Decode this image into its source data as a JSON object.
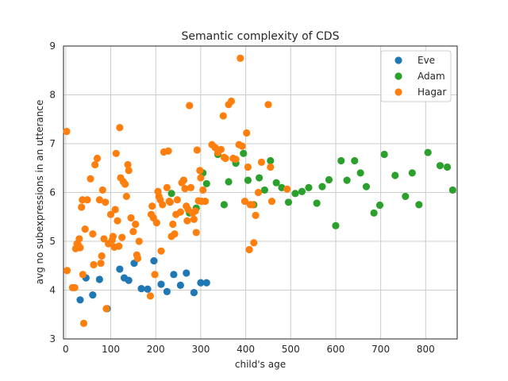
{
  "chart_data": {
    "type": "scatter",
    "title": "Semantic complexity of CDS",
    "xlabel": "child's age",
    "ylabel": "avg no subexpressions in an utterance",
    "xlim": [
      -5,
      870
    ],
    "ylim": [
      3,
      9
    ],
    "xticks": [
      0,
      100,
      200,
      300,
      400,
      500,
      600,
      700,
      800
    ],
    "yticks": [
      3,
      4,
      5,
      6,
      7,
      8,
      9
    ],
    "grid": true,
    "legend": "top-right",
    "series": [
      {
        "name": "Eve",
        "color": "#1f77b4",
        "points": [
          [
            32,
            3.8
          ],
          [
            45,
            4.25
          ],
          [
            60,
            3.9
          ],
          [
            75,
            4.22
          ],
          [
            92,
            3.62
          ],
          [
            120,
            4.43
          ],
          [
            130,
            4.25
          ],
          [
            140,
            4.2
          ],
          [
            152,
            4.55
          ],
          [
            168,
            4.03
          ],
          [
            182,
            4.02
          ],
          [
            196,
            4.6
          ],
          [
            212,
            4.12
          ],
          [
            225,
            3.97
          ],
          [
            240,
            4.32
          ],
          [
            255,
            4.1
          ],
          [
            268,
            4.35
          ],
          [
            285,
            3.95
          ],
          [
            300,
            4.15
          ],
          [
            313,
            4.15
          ]
        ]
      },
      {
        "name": "Adam",
        "color": "#2ca02c",
        "points": [
          [
            235,
            5.98
          ],
          [
            262,
            6.25
          ],
          [
            275,
            5.58
          ],
          [
            290,
            5.68
          ],
          [
            305,
            6.4
          ],
          [
            313,
            6.18
          ],
          [
            338,
            6.78
          ],
          [
            352,
            5.75
          ],
          [
            362,
            6.22
          ],
          [
            378,
            6.6
          ],
          [
            395,
            6.8
          ],
          [
            405,
            6.25
          ],
          [
            418,
            5.75
          ],
          [
            430,
            6.3
          ],
          [
            442,
            6.05
          ],
          [
            455,
            6.65
          ],
          [
            468,
            6.2
          ],
          [
            480,
            6.1
          ],
          [
            495,
            5.8
          ],
          [
            510,
            5.98
          ],
          [
            525,
            6.02
          ],
          [
            540,
            6.1
          ],
          [
            558,
            5.78
          ],
          [
            570,
            6.12
          ],
          [
            585,
            6.26
          ],
          [
            600,
            5.32
          ],
          [
            612,
            6.65
          ],
          [
            625,
            6.25
          ],
          [
            642,
            6.65
          ],
          [
            655,
            6.4
          ],
          [
            668,
            6.12
          ],
          [
            685,
            5.58
          ],
          [
            698,
            5.74
          ],
          [
            708,
            6.78
          ],
          [
            732,
            6.35
          ],
          [
            755,
            5.92
          ],
          [
            770,
            6.4
          ],
          [
            785,
            5.75
          ],
          [
            805,
            6.82
          ],
          [
            832,
            6.55
          ],
          [
            848,
            6.52
          ],
          [
            860,
            6.05
          ]
        ]
      },
      {
        "name": "Hagar",
        "color": "#ff7f0e",
        "points": [
          [
            2,
            7.25
          ],
          [
            3,
            4.4
          ],
          [
            15,
            4.05
          ],
          [
            20,
            4.05
          ],
          [
            22,
            4.85
          ],
          [
            25,
            4.95
          ],
          [
            28,
            4.92
          ],
          [
            30,
            5.05
          ],
          [
            32,
            4.87
          ],
          [
            35,
            5.7
          ],
          [
            37,
            5.85
          ],
          [
            38,
            4.32
          ],
          [
            40,
            3.32
          ],
          [
            43,
            5.25
          ],
          [
            48,
            5.85
          ],
          [
            55,
            6.28
          ],
          [
            60,
            5.15
          ],
          [
            62,
            4.52
          ],
          [
            65,
            6.57
          ],
          [
            70,
            6.7
          ],
          [
            75,
            5.85
          ],
          [
            78,
            4.55
          ],
          [
            80,
            4.7
          ],
          [
            82,
            6.05
          ],
          [
            85,
            5.05
          ],
          [
            88,
            5.8
          ],
          [
            90,
            3.62
          ],
          [
            95,
            4.95
          ],
          [
            100,
            5.55
          ],
          [
            103,
            5.02
          ],
          [
            105,
            5.1
          ],
          [
            108,
            4.88
          ],
          [
            110,
            5.65
          ],
          [
            112,
            6.8
          ],
          [
            115,
            5.42
          ],
          [
            118,
            4.9
          ],
          [
            120,
            7.33
          ],
          [
            122,
            6.3
          ],
          [
            125,
            5.08
          ],
          [
            128,
            6.22
          ],
          [
            132,
            6.17
          ],
          [
            135,
            5.92
          ],
          [
            138,
            6.57
          ],
          [
            140,
            6.45
          ],
          [
            145,
            5.48
          ],
          [
            150,
            5.2
          ],
          [
            155,
            5.35
          ],
          [
            158,
            4.72
          ],
          [
            160,
            4.65
          ],
          [
            163,
            5.0
          ],
          [
            188,
            3.88
          ],
          [
            190,
            5.55
          ],
          [
            192,
            5.72
          ],
          [
            195,
            5.48
          ],
          [
            198,
            4.32
          ],
          [
            202,
            5.38
          ],
          [
            205,
            6.02
          ],
          [
            207,
            5.92
          ],
          [
            210,
            5.85
          ],
          [
            212,
            4.8
          ],
          [
            215,
            5.75
          ],
          [
            218,
            6.83
          ],
          [
            225,
            6.1
          ],
          [
            228,
            6.85
          ],
          [
            230,
            5.82
          ],
          [
            232,
            5.8
          ],
          [
            235,
            5.1
          ],
          [
            238,
            5.35
          ],
          [
            242,
            5.15
          ],
          [
            245,
            5.55
          ],
          [
            248,
            5.85
          ],
          [
            255,
            5.6
          ],
          [
            258,
            6.2
          ],
          [
            262,
            6.25
          ],
          [
            265,
            6.08
          ],
          [
            268,
            5.72
          ],
          [
            270,
            5.42
          ],
          [
            272,
            5.65
          ],
          [
            275,
            7.78
          ],
          [
            278,
            6.1
          ],
          [
            282,
            5.58
          ],
          [
            285,
            5.45
          ],
          [
            288,
            5.62
          ],
          [
            290,
            5.18
          ],
          [
            292,
            6.87
          ],
          [
            295,
            5.83
          ],
          [
            298,
            6.45
          ],
          [
            300,
            6.3
          ],
          [
            302,
            5.82
          ],
          [
            305,
            6.05
          ],
          [
            310,
            5.82
          ],
          [
            325,
            6.98
          ],
          [
            332,
            6.92
          ],
          [
            338,
            6.82
          ],
          [
            345,
            6.88
          ],
          [
            350,
            7.57
          ],
          [
            352,
            6.72
          ],
          [
            355,
            6.7
          ],
          [
            362,
            7.8
          ],
          [
            368,
            7.87
          ],
          [
            372,
            6.7
          ],
          [
            378,
            6.68
          ],
          [
            385,
            6.98
          ],
          [
            388,
            8.75
          ],
          [
            392,
            6.95
          ],
          [
            398,
            5.82
          ],
          [
            402,
            7.22
          ],
          [
            405,
            6.52
          ],
          [
            408,
            4.83
          ],
          [
            410,
            5.75
          ],
          [
            415,
            5.75
          ],
          [
            418,
            4.97
          ],
          [
            422,
            5.53
          ],
          [
            428,
            6.0
          ],
          [
            435,
            6.62
          ],
          [
            450,
            7.8
          ],
          [
            455,
            6.52
          ],
          [
            458,
            5.82
          ],
          [
            492,
            6.07
          ]
        ]
      }
    ]
  }
}
